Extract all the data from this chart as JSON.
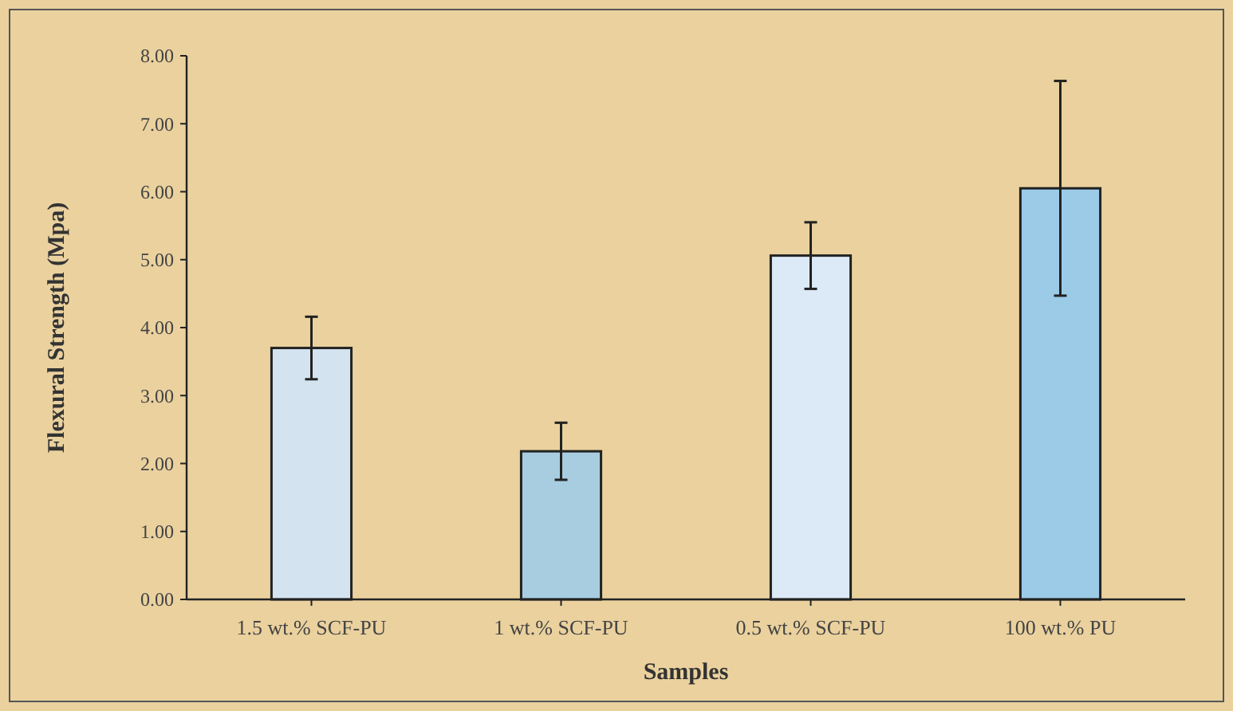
{
  "chart_data": {
    "type": "bar",
    "xlabel": "Samples",
    "ylabel": "Flexural Strength (Mpa)",
    "categories": [
      "1.5 wt.% SCF-PU",
      "1 wt.% SCF-PU",
      "0.5 wt.% SCF-PU",
      "100 wt.% PU"
    ],
    "values": [
      3.7,
      2.18,
      5.06,
      6.05
    ],
    "errors": [
      0.46,
      0.42,
      0.49,
      1.58
    ],
    "colors": [
      "#d3e4f0",
      "#a8cde0",
      "#dbeaf6",
      "#9ccbe8"
    ],
    "ylim": [
      0,
      8
    ],
    "yticks": [
      {
        "value": 0,
        "label": "0.00"
      },
      {
        "value": 1,
        "label": "1.00"
      },
      {
        "value": 2,
        "label": "2.00"
      },
      {
        "value": 3,
        "label": "3.00"
      },
      {
        "value": 4,
        "label": "4.00"
      },
      {
        "value": 5,
        "label": "5.00"
      },
      {
        "value": 6,
        "label": "6.00"
      },
      {
        "value": 7,
        "label": "7.00"
      },
      {
        "value": 8,
        "label": "8.00"
      }
    ]
  }
}
